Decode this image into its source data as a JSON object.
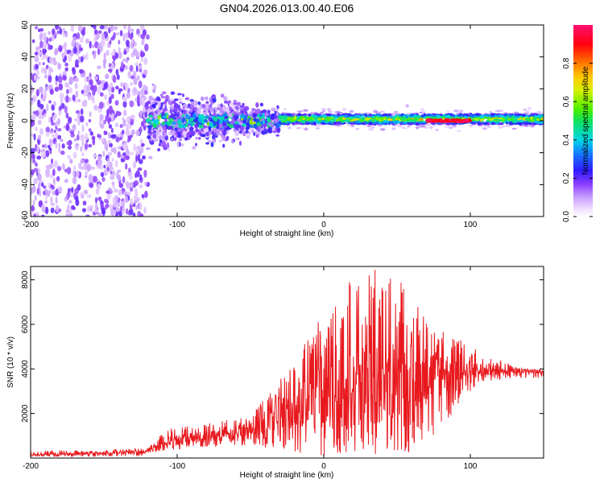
{
  "figure_title": "GN04.2026.013.00.40.E06",
  "colorbar": {
    "label": "Normalized spectral amplitude",
    "ticks": [
      "0.0",
      "0.2",
      "0.4",
      "0.6",
      "0.8"
    ],
    "tick_values": [
      0.0,
      0.2,
      0.4,
      0.6,
      0.8
    ],
    "range": [
      0,
      1
    ]
  },
  "chart_data": [
    {
      "type": "heatmap",
      "title": "GN04.2026.013.00.40.E06",
      "xlabel": "Height of straight line (km)",
      "ylabel": "Frequency (Hz)",
      "xlim": [
        -200,
        150
      ],
      "ylim": [
        -60,
        60
      ],
      "x_ticks": [
        -200,
        -100,
        0,
        100
      ],
      "x_tick_labels": [
        "-200",
        "-100",
        "0",
        "100"
      ],
      "y_ticks": [
        -60,
        -40,
        -20,
        0,
        20,
        40,
        60
      ],
      "y_tick_labels": [
        "-60",
        "-40",
        "-20",
        "0",
        "20",
        "40",
        "60"
      ],
      "regions": [
        {
          "x_range": [
            -200,
            -120
          ],
          "freq_range": [
            -60,
            60
          ],
          "amplitude": 0.08,
          "description": "broadband noise"
        },
        {
          "x_range": [
            -120,
            -30
          ],
          "freq_range": [
            -15,
            15
          ],
          "amplitude": 0.3
        },
        {
          "x_range": [
            -30,
            150
          ],
          "freq_range": [
            -2,
            4
          ],
          "amplitude": 0.7
        },
        {
          "x_range": [
            70,
            100
          ],
          "freq_range": [
            -1,
            1
          ],
          "amplitude": 1.0
        }
      ]
    },
    {
      "type": "line",
      "xlabel": "Height of straight line (km)",
      "ylabel": "SNR (10 * v/v)",
      "xlim": [
        -200,
        150
      ],
      "ylim": [
        0,
        8600
      ],
      "x_ticks": [
        -200,
        -100,
        0,
        100
      ],
      "x_tick_labels": [
        "-200",
        "-100",
        "0",
        "100"
      ],
      "y_ticks": [
        2000,
        4000,
        6000,
        8000
      ],
      "y_tick_labels": [
        "2000",
        "4000",
        "6000",
        "8000"
      ],
      "series": [
        {
          "name": "SNR",
          "color": "#e8191e",
          "x": [
            -200,
            -180,
            -160,
            -140,
            -120,
            -110,
            -100,
            -90,
            -80,
            -70,
            -60,
            -50,
            -40,
            -30,
            -20,
            -10,
            0,
            10,
            20,
            30,
            40,
            50,
            60,
            70,
            80,
            90,
            100,
            110,
            120,
            130,
            140,
            150
          ],
          "baseline": [
            150,
            180,
            200,
            250,
            280,
            700,
            800,
            900,
            950,
            1000,
            1100,
            1300,
            1600,
            2000,
            2300,
            2500,
            2700,
            2900,
            3100,
            3300,
            3400,
            3500,
            3600,
            3700,
            3800,
            3850,
            3900,
            3950,
            3950,
            3900,
            3900,
            3850
          ],
          "peak": [
            300,
            350,
            350,
            400,
            450,
            1100,
            1500,
            1500,
            1600,
            1700,
            1700,
            2000,
            2700,
            3500,
            4500,
            5600,
            6500,
            7200,
            8400,
            8500,
            8400,
            8000,
            7600,
            6500,
            5800,
            5400,
            5100,
            4600,
            4400,
            4100,
            4000,
            4000
          ],
          "trough": [
            50,
            60,
            70,
            80,
            100,
            300,
            400,
            450,
            500,
            500,
            550,
            450,
            350,
            250,
            200,
            150,
            100,
            100,
            100,
            100,
            150,
            200,
            300,
            600,
            1200,
            2200,
            3000,
            3400,
            3500,
            3600,
            3600,
            3600
          ]
        }
      ]
    }
  ]
}
